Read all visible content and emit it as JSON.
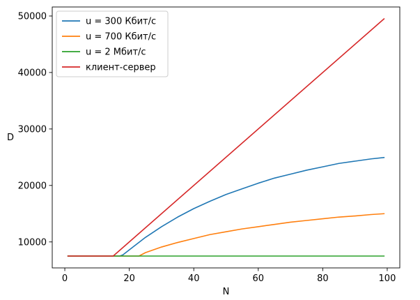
{
  "chart_data": {
    "type": "line",
    "title": "",
    "xlabel": "N",
    "ylabel": "D",
    "xlim": [
      -3.9,
      103.9
    ],
    "ylim": [
      5400,
      51600
    ],
    "xticks": [
      0,
      20,
      40,
      60,
      80,
      100
    ],
    "yticks": [
      10000,
      20000,
      30000,
      40000,
      50000
    ],
    "grid": false,
    "legend_position": "top-left",
    "series": [
      {
        "name": "u = 300 Кбит/с",
        "color": "#1f77b4",
        "x": [
          1,
          17,
          18,
          20,
          25,
          30,
          35,
          40,
          45,
          50,
          55,
          60,
          65,
          70,
          75,
          80,
          85,
          90,
          95,
          99
        ],
        "y": [
          7500,
          7500,
          7700,
          8600,
          10800,
          12700,
          14400,
          15900,
          17200,
          18400,
          19400,
          20400,
          21300,
          22000,
          22700,
          23300,
          23900,
          24300,
          24700,
          24950
        ]
      },
      {
        "name": "u = 700 Кбит/с",
        "color": "#ff7f0e",
        "x": [
          1,
          23,
          25,
          30,
          35,
          40,
          45,
          50,
          55,
          60,
          65,
          70,
          75,
          80,
          85,
          90,
          95,
          99
        ],
        "y": [
          7500,
          7500,
          8100,
          9100,
          9900,
          10600,
          11300,
          11800,
          12300,
          12700,
          13100,
          13500,
          13800,
          14100,
          14400,
          14600,
          14850,
          15000
        ]
      },
      {
        "name": "u = 2 Мбит/с",
        "color": "#2ca02c",
        "x": [
          1,
          99
        ],
        "y": [
          7500,
          7500
        ]
      },
      {
        "name": "клиент-сервер",
        "color": "#d62728",
        "x": [
          1,
          15,
          99
        ],
        "y": [
          7500,
          7500,
          49500
        ]
      }
    ]
  }
}
